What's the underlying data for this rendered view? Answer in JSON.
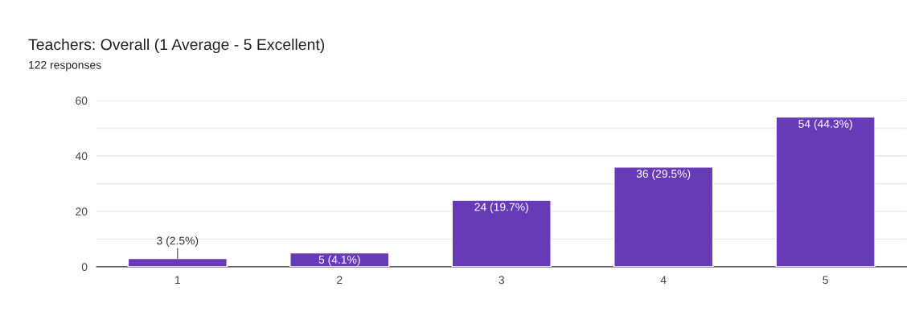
{
  "chart_data": {
    "type": "bar",
    "title": "Teachers: Overall (1 Average - 5 Excellent)",
    "subtitle": "122 responses",
    "categories": [
      "1",
      "2",
      "3",
      "4",
      "5"
    ],
    "values": [
      3,
      5,
      24,
      36,
      54
    ],
    "value_labels": [
      "3 (2.5%)",
      "5 (4.1%)",
      "24 (19.7%)",
      "36 (29.5%)",
      "54 (44.3%)"
    ],
    "color": "#673ab7",
    "ylim": [
      0,
      60
    ],
    "yticks": [
      0,
      {
        "value": 10,
        "label": null
      },
      20,
      {
        "value": 30,
        "label": null
      },
      40,
      {
        "value": 50,
        "label": null
      },
      60
    ],
    "grid": "y"
  }
}
